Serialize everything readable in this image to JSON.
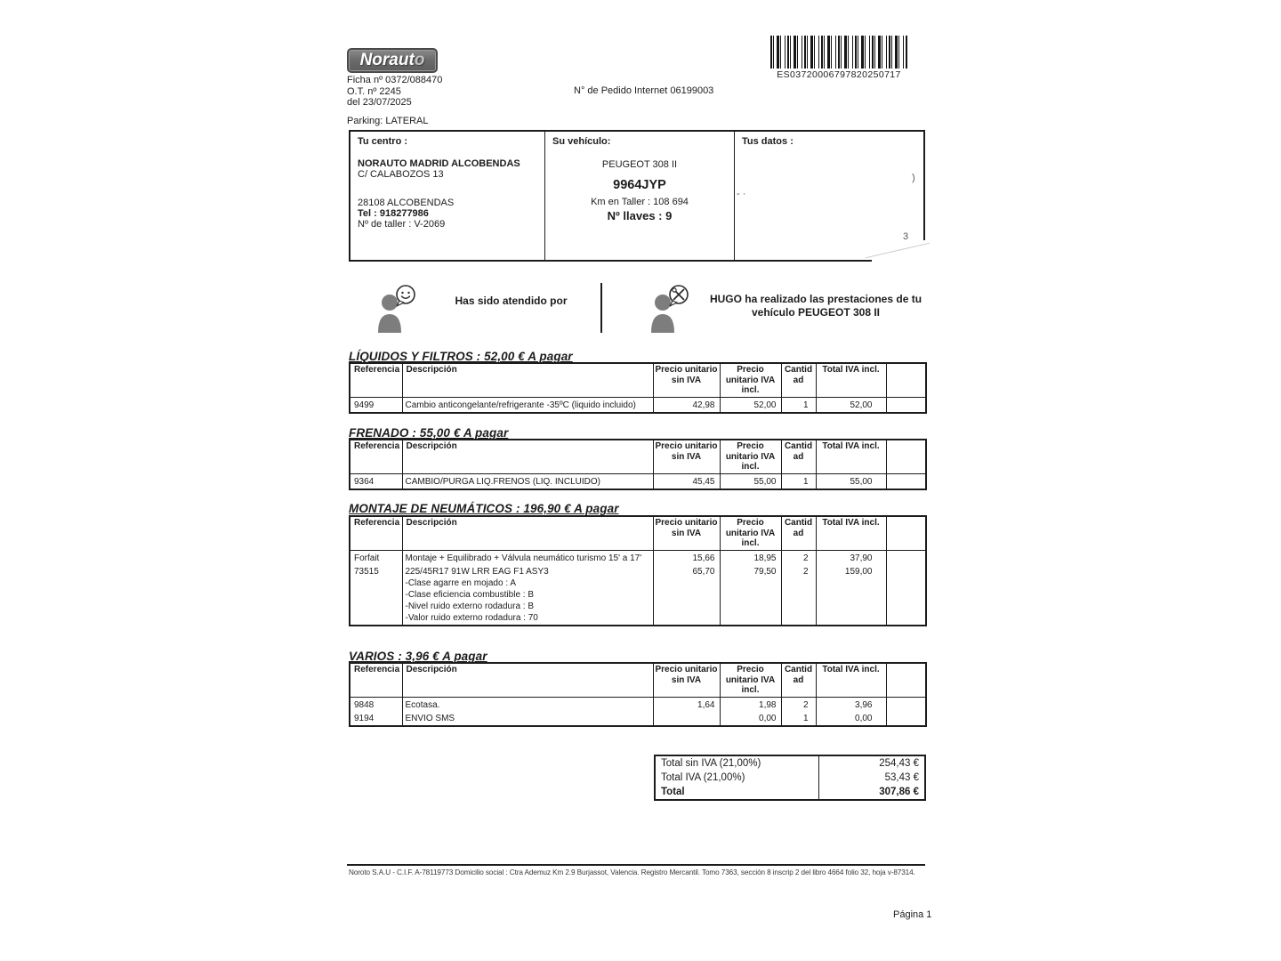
{
  "header": {
    "logo_text": "Norauto",
    "ficha": "Ficha nº 0372/088470",
    "ot": "O.T. nº 2245",
    "date": "del 23/07/2025",
    "pedido_internet": "N° de Pedido Internet 06199003",
    "parking": "Parking: LATERAL",
    "barcode_text": "ES03720006797820250717"
  },
  "info_box": {
    "centro": {
      "title": "Tu centro :",
      "name": "NORAUTO MADRID ALCOBENDAS",
      "address": "C/ CALABOZOS 13",
      "city": "28108  ALCOBENDAS",
      "tel": "Tel : 918277986",
      "taller": "Nº de taller : V-2069"
    },
    "vehiculo": {
      "title": "Su vehículo:",
      "model": "PEUGEOT 308 II",
      "plate": "9964JYP",
      "km": "Km en Taller : 108 694",
      "llaves": "Nº llaves : 9"
    },
    "datos": {
      "title": "Tus datos :"
    }
  },
  "artifacts": {
    "dash": "- ·",
    "paren": ")",
    "three": "3"
  },
  "attended": {
    "left_text": "Has sido atendido por",
    "right_text": "HUGO ha realizado las prestaciones de tu vehículo PEUGEOT 308 II"
  },
  "table_headers": [
    "Referencia",
    "Descripción",
    "Precio unitario\nsin IVA",
    "Precio\nunitario IVA\nincl.",
    "Cantidad",
    "Total IVA incl.",
    ""
  ],
  "sections": [
    {
      "title": "LÍQUIDOS Y FILTROS : 52,00 € A pagar",
      "rows": [
        {
          "ref": "9499",
          "desc": [
            "Cambio anticongelante/refrigerante -35ºC (liquido incluido)"
          ],
          "unit_no_vat": "42,98",
          "unit_vat": "52,00",
          "qty": "1",
          "total": "52,00"
        }
      ]
    },
    {
      "title": "FRENADO : 55,00 € A pagar",
      "rows": [
        {
          "ref": "9364",
          "desc": [
            "CAMBIO/PURGA LIQ.FRENOS (LIQ. INCLUIDO)"
          ],
          "unit_no_vat": "45,45",
          "unit_vat": "55,00",
          "qty": "1",
          "total": "55,00"
        }
      ]
    },
    {
      "title": "MONTAJE DE NEUMÁTICOS : 196,90 € A pagar",
      "rows": [
        {
          "ref": "Forfait",
          "desc": [
            "Montaje + Equilibrado + Válvula neumático turismo 15' a 17'"
          ],
          "unit_no_vat": "15,66",
          "unit_vat": "18,95",
          "qty": "2",
          "total": "37,90"
        },
        {
          "ref": "73515",
          "desc": [
            "225/45R17 91W LRR EAG F1 ASY3",
            "-Clase agarre en mojado : A",
            "-Clase eficiencia combustible : B",
            "-Nivel ruido externo rodadura : B",
            "-Valor ruido externo rodadura : 70"
          ],
          "unit_no_vat": "65,70",
          "unit_vat": "79,50",
          "qty": "2",
          "total": "159,00"
        }
      ]
    },
    {
      "title": "VARIOS : 3,96 € A pagar",
      "rows": [
        {
          "ref": "9848",
          "desc": [
            "Ecotasa."
          ],
          "unit_no_vat": "1,64",
          "unit_vat": "1,98",
          "qty": "2",
          "total": "3,96"
        },
        {
          "ref": "9194",
          "desc": [
            "ENVIO SMS"
          ],
          "unit_no_vat": "",
          "unit_vat": "0,00",
          "qty": "1",
          "total": "0,00"
        }
      ]
    }
  ],
  "totals": {
    "rows": [
      {
        "label": "Total sin IVA (21,00%)",
        "value": "254,43 €"
      },
      {
        "label": "Total IVA (21,00%)",
        "value": "53,43 €"
      },
      {
        "label": "Total",
        "value": "307,86 €"
      }
    ]
  },
  "footer": {
    "legal": "Noroto S.A.U  - C.I.F. A-78119773  Domicilio social :  Ctra Ademuz Km 2.9 Burjassot, Valencia. Registro Mercantil. Tomo 7363, sección 8 inscrip 2 del libro 4664 folio 32, hoja v-87314.",
    "page": "Página 1"
  }
}
